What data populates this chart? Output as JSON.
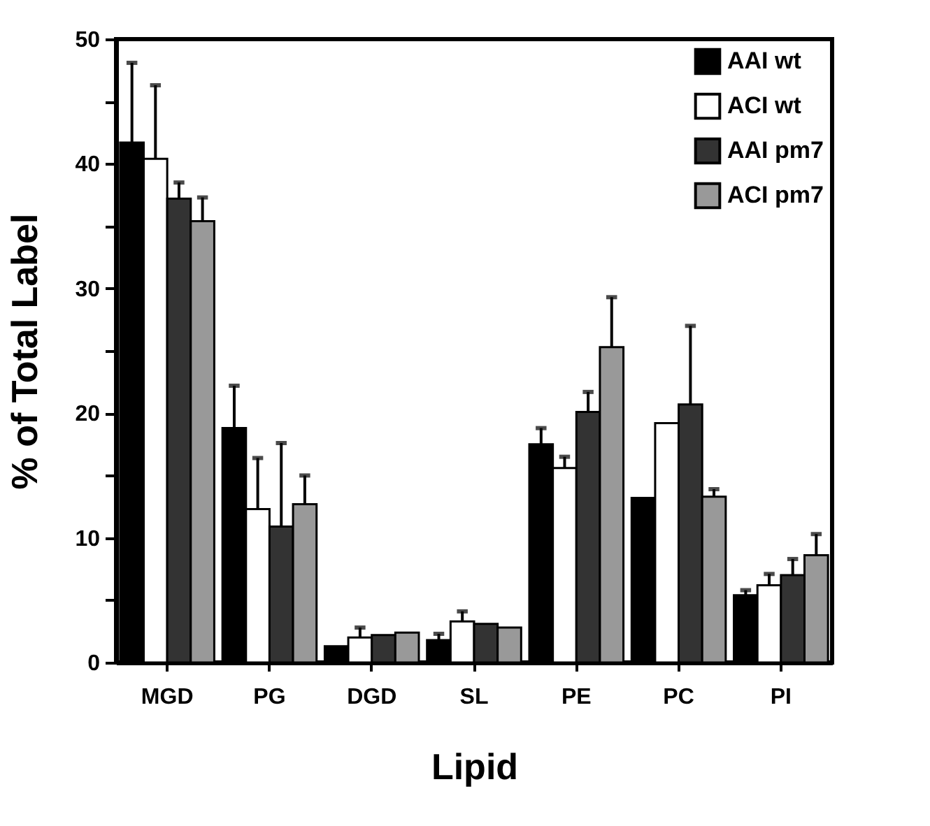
{
  "chart_data": {
    "type": "bar",
    "xlabel": "Lipid",
    "ylabel": "% of Total Label",
    "categories": [
      "MGD",
      "PG",
      "DGD",
      "SL",
      "PE",
      "PC",
      "PI"
    ],
    "series": [
      {
        "name": "AAI wt",
        "color": "#000000",
        "values": [
          41.7,
          18.8,
          1.3,
          1.8,
          17.5,
          13.2,
          5.4
        ],
        "errors": [
          [
            41.7,
            48.1
          ],
          [
            18.8,
            22.2
          ],
          null,
          [
            1.8,
            2.3
          ],
          [
            17.5,
            18.8
          ],
          null,
          [
            5.4,
            5.8
          ]
        ]
      },
      {
        "name": "ACI wt",
        "color": "#ffffff",
        "values": [
          40.4,
          12.3,
          2.0,
          3.3,
          15.6,
          19.2,
          6.2
        ],
        "errors": [
          [
            40.4,
            46.3
          ],
          [
            12.3,
            16.4
          ],
          [
            2.0,
            2.8
          ],
          [
            3.3,
            4.1
          ],
          [
            15.6,
            16.5
          ],
          null,
          [
            6.2,
            7.1
          ]
        ]
      },
      {
        "name": "AAI pm7",
        "color": "#333333",
        "values": [
          37.2,
          10.9,
          2.2,
          3.1,
          20.1,
          20.7,
          7.0
        ],
        "errors": [
          [
            37.2,
            38.5
          ],
          [
            10.9,
            17.6
          ],
          null,
          null,
          [
            20.1,
            21.7
          ],
          [
            20.7,
            27.0
          ],
          [
            7.0,
            8.3
          ]
        ]
      },
      {
        "name": "ACI pm7",
        "color": "#999999",
        "values": [
          35.4,
          12.7,
          2.4,
          2.8,
          25.3,
          13.3,
          8.6
        ],
        "errors": [
          [
            35.4,
            37.3
          ],
          [
            12.7,
            15.0
          ],
          null,
          null,
          [
            25.3,
            29.3
          ],
          [
            13.3,
            13.9
          ],
          [
            8.6,
            10.3
          ]
        ]
      }
    ],
    "ylim": [
      0,
      50
    ],
    "yticks": [
      0,
      {
        "value": 5,
        "label": null
      },
      10,
      {
        "value": 15,
        "label": null
      },
      20,
      {
        "value": 25,
        "label": null
      },
      30,
      {
        "value": 35,
        "label": null
      },
      40,
      {
        "value": 45,
        "label": null
      },
      50
    ],
    "legend": "top right",
    "grid": false
  }
}
